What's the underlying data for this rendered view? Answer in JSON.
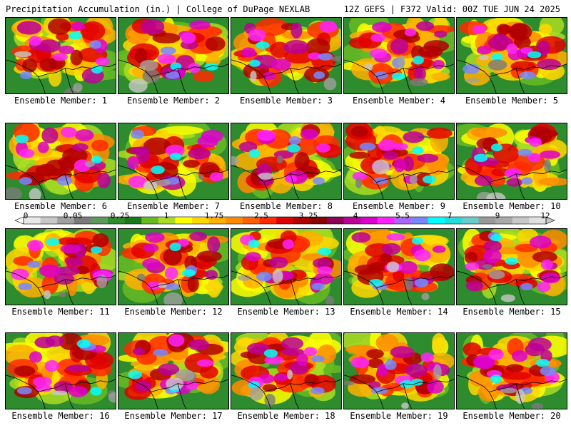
{
  "header": {
    "left_title": "Precipitation Accumulation (in.) | College of DuPage NEXLAB",
    "right_title": "12Z GEFS | F372 Valid: 00Z TUE JUN 24 2025"
  },
  "colorbar": {
    "labels": [
      "0",
      "0.05",
      "0.25",
      "1",
      "1.75",
      "2.5",
      "3.25",
      "4",
      "5.5",
      "7",
      "9",
      "12"
    ],
    "colors": [
      "#e8e8e8",
      "#c8c8c8",
      "#a0a0a0",
      "#7a7a7a",
      "#5a9a5a",
      "#2e8b2e",
      "#1a7a1a",
      "#66bb22",
      "#aadd22",
      "#ffff00",
      "#ffd700",
      "#ffb000",
      "#ff8c00",
      "#ff6000",
      "#ff2a00",
      "#e00000",
      "#b00000",
      "#880000",
      "#8b0055",
      "#bb0099",
      "#dd00cc",
      "#ff22ff",
      "#aa66ff",
      "#7788ff",
      "#00ffff",
      "#22dddd",
      "#66cccc",
      "#999999",
      "#aaaaaa",
      "#c8c8c8",
      "#e0e0e0"
    ]
  },
  "panels": [
    {
      "label": "Ensemble Member: 1"
    },
    {
      "label": "Ensemble Member: 2"
    },
    {
      "label": "Ensemble Member: 3"
    },
    {
      "label": "Ensemble Member: 4"
    },
    {
      "label": "Ensemble Member: 5"
    },
    {
      "label": "Ensemble Member: 6"
    },
    {
      "label": "Ensemble Member: 7"
    },
    {
      "label": "Ensemble Member: 8"
    },
    {
      "label": "Ensemble Member: 9"
    },
    {
      "label": "Ensemble Member: 10"
    },
    {
      "label": "Ensemble Member: 11"
    },
    {
      "label": "Ensemble Member: 12"
    },
    {
      "label": "Ensemble Member: 13"
    },
    {
      "label": "Ensemble Member: 14"
    },
    {
      "label": "Ensemble Member: 15"
    },
    {
      "label": "Ensemble Member: 16"
    },
    {
      "label": "Ensemble Member: 17"
    },
    {
      "label": "Ensemble Member: 18"
    },
    {
      "label": "Ensemble Member: 19"
    },
    {
      "label": "Ensemble Member: 20"
    }
  ]
}
